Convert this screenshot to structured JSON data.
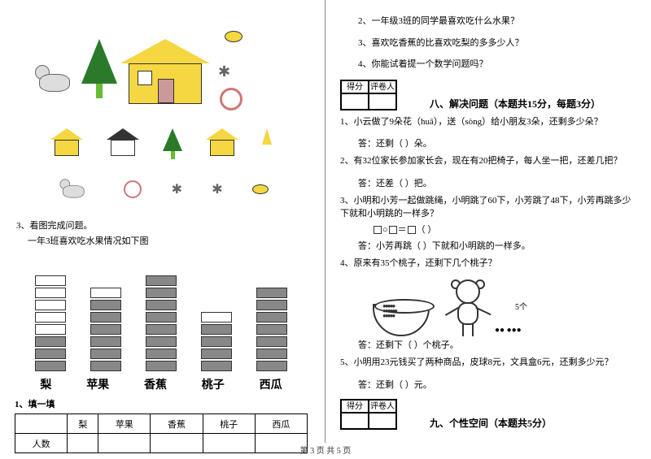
{
  "footer": "第 3 页 共 5 页",
  "left": {
    "q3_label": "3、看图完成问题。",
    "q3_sub": "一年3班喜欢吃水果情况如下图",
    "chart": {
      "categories": [
        "梨",
        "苹果",
        "香蕉",
        "桃子",
        "西瓜"
      ],
      "stacks": [
        {
          "filled": 3,
          "empty": 5
        },
        {
          "filled": 6,
          "empty": 1
        },
        {
          "filled": 8,
          "empty": 0
        },
        {
          "filled": 4,
          "empty": 1
        },
        {
          "filled": 7,
          "empty": 0
        }
      ],
      "block_filled_color": "#888888",
      "block_empty_color": "#ffffff",
      "block_border": "#333333"
    },
    "fill_label": "1、填一填",
    "table_headers": [
      "",
      "梨",
      "苹果",
      "香蕉",
      "桃子",
      "西瓜"
    ],
    "table_row_label": "人数"
  },
  "right": {
    "q2": "2、一年级3班的同学最喜欢吃什么水果？",
    "q3": "3、喜欢吃香蕉的比喜欢吃梨的多多少人？",
    "q4": "4、你能试着提一个数学问题吗？",
    "score_header": [
      "得分",
      "评卷人"
    ],
    "section8_title": "八、解决问题（本题共15分，每题3分）",
    "p1": "1、小云做了9朵花（huā），送（sòng）给小朋友3朵，还剩多少朵？",
    "p1_ans": "答：还剩（  ）朵。",
    "p2": "2、有32位家长参加家长会，现在有20把椅子，每人坐一把，还差几把？",
    "p2_ans": "答：还差（  ）把。",
    "p3": "3、小明和小芳一起做跳绳，小明跳了60下，小芳跳了48下，小芳再跳多少下就和小明跳的一样多？",
    "p3_ans": "答：小芳再跳（  ）下就和小明跳的一样多。",
    "p4": "4、原来有35个桃子，还剩下几个桃子？",
    "p4_five": "5个",
    "p4_ans": "答：还剩下（  ）个桃子。",
    "p5": "5、小明用23元钱买了两种商品，皮球8元，文具盒6元，还剩多少元？",
    "p5_ans": "答：还剩（  ）元。",
    "section9_title": "九、个性空间（本题共5分）"
  }
}
